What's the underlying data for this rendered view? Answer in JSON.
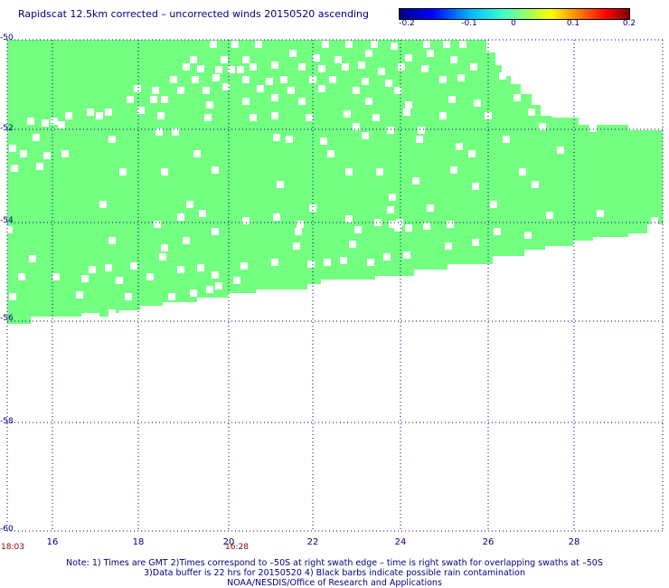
{
  "title": "Rapidscat 12.5km corrected – uncorrected winds 20150520 ascending",
  "colorbar": {
    "labels": [
      "-0.2",
      "-0.1",
      "0",
      "0.1",
      "0.2"
    ],
    "min": -0.2,
    "max": 0.2
  },
  "axes": {
    "y_ticks": [
      "-50",
      "-52",
      "-54",
      "-56",
      "-58",
      "-60"
    ],
    "x_ticks": [
      "16",
      "18",
      "20",
      "22",
      "24",
      "26",
      "28"
    ],
    "x_range": [
      15,
      30
    ],
    "y_range": [
      -60,
      -50
    ]
  },
  "times": [
    "18:03",
    "16:28"
  ],
  "notes": {
    "line1": "Note: 1) Times are GMT 2)Times correspond to –50S at right swath edge – time is right swath for overlapping swaths at –50S",
    "line2": "3)Data buffer is 22 hrs for 20150520 4) Black barbs indicate possible rain contamination",
    "line3": "NOAA/NESDIS/Office of Research and Applications"
  },
  "colors": {
    "swath": "#73ff80",
    "grid": "#000080",
    "title": "#000080",
    "time": "#8b0000"
  }
}
